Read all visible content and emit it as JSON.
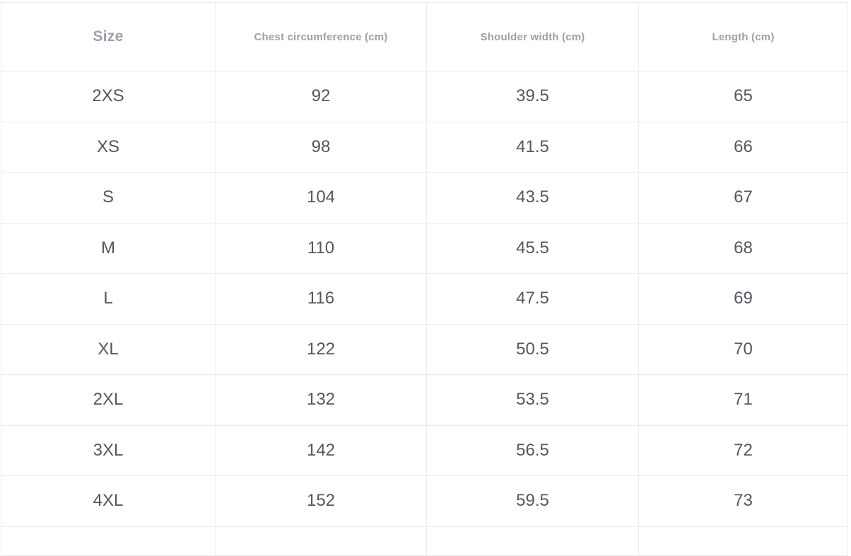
{
  "table": {
    "columns": [
      {
        "id": "size",
        "label": "Size"
      },
      {
        "id": "chest-circumference",
        "label": "Chest circumference (cm)"
      },
      {
        "id": "shoulder-width",
        "label": "Shoulder width (cm)"
      },
      {
        "id": "length",
        "label": "Length (cm)"
      }
    ],
    "rows": [
      [
        "2XS",
        "92",
        "39.5",
        "65"
      ],
      [
        "XS",
        "98",
        "41.5",
        "66"
      ],
      [
        "S",
        "104",
        "43.5",
        "67"
      ],
      [
        "M",
        "110",
        "45.5",
        "68"
      ],
      [
        "L",
        "116",
        "47.5",
        "69"
      ],
      [
        "XL",
        "122",
        "50.5",
        "70"
      ],
      [
        "2XL",
        "132",
        "53.5",
        "71"
      ],
      [
        "3XL",
        "142",
        "56.5",
        "72"
      ],
      [
        "4XL",
        "152",
        "59.5",
        "73"
      ]
    ]
  },
  "chart_data": {
    "type": "table",
    "title": "",
    "columns": [
      "Size",
      "Chest circumference (cm)",
      "Shoulder width (cm)",
      "Length (cm)"
    ],
    "sizes": [
      "2XS",
      "XS",
      "S",
      "M",
      "L",
      "XL",
      "2XL",
      "3XL",
      "4XL"
    ],
    "series": [
      {
        "name": "Chest circumference (cm)",
        "values": [
          92,
          98,
          104,
          110,
          116,
          122,
          132,
          142,
          152
        ]
      },
      {
        "name": "Shoulder width (cm)",
        "values": [
          39.5,
          41.5,
          43.5,
          45.5,
          47.5,
          50.5,
          53.5,
          56.5,
          59.5
        ]
      },
      {
        "name": "Length (cm)",
        "values": [
          65,
          66,
          67,
          68,
          69,
          70,
          71,
          72,
          73
        ]
      }
    ]
  },
  "colors": {
    "header_text": "#9ba0ab",
    "cell_text": "#54585f",
    "border": "#eaecee",
    "background": "#ffffff"
  }
}
